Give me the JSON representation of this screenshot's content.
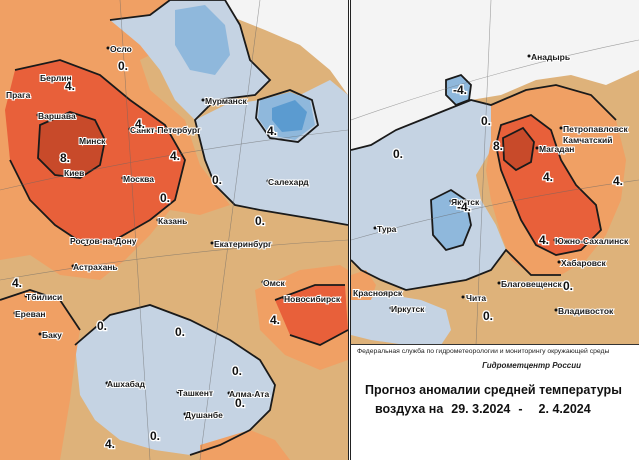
{
  "colors": {
    "strong_warm": "#e8603a",
    "warm": "#f0a064",
    "mild_warm": "#deb27a",
    "neutral": "#d9c7a5",
    "cool": "#c5d3e3",
    "cold": "#8fb8dc",
    "very_cold": "#5b9bd0",
    "hot_core": "#c84a2a"
  },
  "west_map": {
    "cities": [
      "Осло",
      "Берлин",
      "Прага",
      "Варшава",
      "Минск",
      "Санкт-Петербург",
      "Мурманск",
      "Киев",
      "Москва",
      "Казань",
      "Ростов-на-Дону",
      "Екатеринбург",
      "Салехард",
      "Астрахань",
      "Тбилиси",
      "Ереван",
      "Омск",
      "Новосибирск",
      "Баку",
      "Ашхабад",
      "Ташкент",
      "Алма-Ата",
      "Душанбе"
    ],
    "isolines": [
      "0.",
      "4.",
      "4.",
      "8.",
      "4.",
      "0.",
      "4.",
      "0.",
      "0.",
      "4.",
      "4.",
      "0.",
      "0.",
      "0.",
      "4.",
      "0.",
      "0."
    ]
  },
  "east_map": {
    "cities": [
      "Анадырь",
      "Петропавловск",
      "Камчатский",
      "Магадан",
      "Якутск",
      "Тура",
      "Южно-Сахалинск",
      "Хабаровск",
      "Благовещенск",
      "Чита",
      "Красноярск",
      "Иркутск",
      "Владивосток"
    ],
    "isolines": [
      "0.",
      "8.",
      "4.",
      "-4.",
      "-4.",
      "0.",
      "0.",
      "4.",
      "4.",
      "0."
    ]
  },
  "info": {
    "agency": "Федеральная служба по гидрометеорологии и мониторингу окружающей среды",
    "center": "Гидрометцентр России",
    "title_line1": "Прогноз аномалии средней температуры",
    "title_prefix": "воздуха на",
    "date_start": "29. 3.2024",
    "date_sep": "-",
    "date_end": "2. 4.2024"
  }
}
